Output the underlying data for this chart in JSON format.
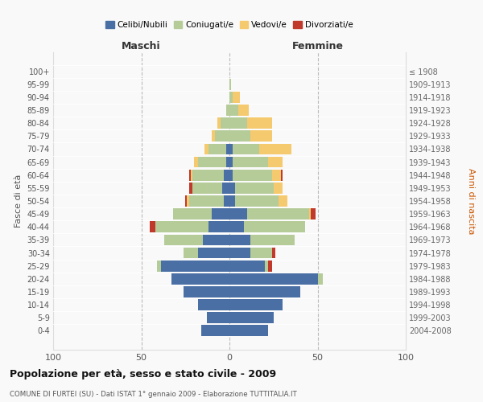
{
  "age_groups": [
    "0-4",
    "5-9",
    "10-14",
    "15-19",
    "20-24",
    "25-29",
    "30-34",
    "35-39",
    "40-44",
    "45-49",
    "50-54",
    "55-59",
    "60-64",
    "65-69",
    "70-74",
    "75-79",
    "80-84",
    "85-89",
    "90-94",
    "95-99",
    "100+"
  ],
  "birth_years": [
    "2004-2008",
    "1999-2003",
    "1994-1998",
    "1989-1993",
    "1984-1988",
    "1979-1983",
    "1974-1978",
    "1969-1973",
    "1964-1968",
    "1959-1963",
    "1954-1958",
    "1949-1953",
    "1944-1948",
    "1939-1943",
    "1934-1938",
    "1929-1933",
    "1924-1928",
    "1919-1923",
    "1914-1918",
    "1909-1913",
    "≤ 1908"
  ],
  "colors": {
    "celibi": "#4a6fa5",
    "coniugati": "#b5cc99",
    "vedovi": "#f5c96e",
    "divorziati": "#c0392b"
  },
  "maschi": {
    "celibi": [
      16,
      13,
      18,
      26,
      33,
      39,
      18,
      15,
      12,
      10,
      3,
      4,
      3,
      2,
      2,
      0,
      0,
      0,
      0,
      0,
      0
    ],
    "coniugati": [
      0,
      0,
      0,
      0,
      0,
      2,
      8,
      22,
      30,
      22,
      20,
      17,
      18,
      16,
      10,
      8,
      5,
      2,
      0,
      0,
      0
    ],
    "vedovi": [
      0,
      0,
      0,
      0,
      0,
      0,
      0,
      0,
      0,
      0,
      1,
      0,
      1,
      2,
      2,
      2,
      2,
      0,
      0,
      0,
      0
    ],
    "divorziati": [
      0,
      0,
      0,
      0,
      0,
      0,
      0,
      0,
      3,
      0,
      1,
      2,
      1,
      0,
      0,
      0,
      0,
      0,
      0,
      0,
      0
    ]
  },
  "femmine": {
    "celibi": [
      22,
      25,
      30,
      40,
      50,
      20,
      12,
      12,
      8,
      10,
      3,
      3,
      2,
      2,
      2,
      0,
      0,
      0,
      0,
      0,
      0
    ],
    "coniugati": [
      0,
      0,
      0,
      0,
      3,
      2,
      12,
      25,
      35,
      35,
      25,
      22,
      22,
      20,
      15,
      12,
      10,
      5,
      2,
      1,
      0
    ],
    "vedovi": [
      0,
      0,
      0,
      0,
      0,
      0,
      0,
      0,
      0,
      1,
      5,
      5,
      5,
      8,
      18,
      12,
      14,
      6,
      4,
      0,
      0
    ],
    "divorziati": [
      0,
      0,
      0,
      0,
      0,
      2,
      2,
      0,
      0,
      3,
      0,
      0,
      1,
      0,
      0,
      0,
      0,
      0,
      0,
      0,
      0
    ]
  },
  "title": "Popolazione per età, sesso e stato civile - 2009",
  "subtitle": "COMUNE DI FURTEI (SU) - Dati ISTAT 1° gennaio 2009 - Elaborazione TUTTITALIA.IT",
  "xlabel_left": "Maschi",
  "xlabel_right": "Femmine",
  "ylabel_left": "Fasce di età",
  "ylabel_right": "Anni di nascita",
  "xlim": 100,
  "legend_labels": [
    "Celibi/Nubili",
    "Coniugati/e",
    "Vedovi/e",
    "Divorziati/e"
  ],
  "bg_color": "#f9f9f9",
  "grid_color": "#cccccc"
}
